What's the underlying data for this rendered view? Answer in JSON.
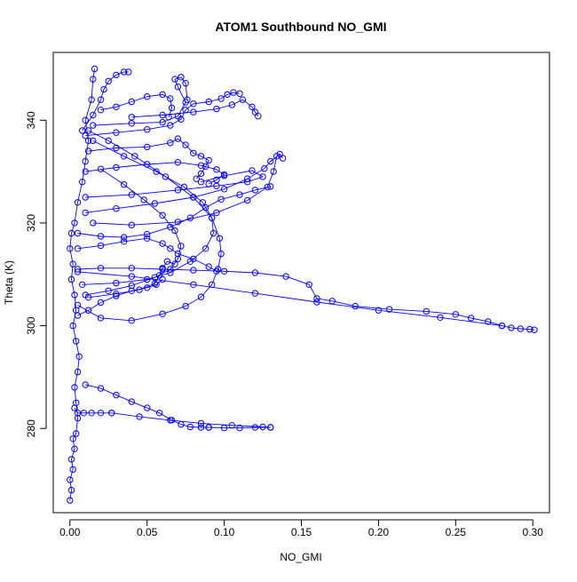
{
  "chart_data": {
    "type": "scatter",
    "title": "ATOM1 Southbound NO_GMI",
    "xlabel": "NO_GMI",
    "ylabel": "Theta (K)",
    "xlim": [
      -0.0108,
      0.3108
    ],
    "ylim": [
      263.6,
      353.2
    ],
    "x_ticks": [
      0.0,
      0.05,
      0.1,
      0.15,
      0.2,
      0.25,
      0.3
    ],
    "x_tick_labels": [
      "0.00",
      "0.05",
      "0.10",
      "0.15",
      "0.20",
      "0.25",
      "0.30"
    ],
    "y_ticks": [
      280,
      300,
      320,
      340
    ],
    "y_tick_labels": [
      "280",
      "300",
      "320",
      "340"
    ],
    "grid": false,
    "marker": "open-circle",
    "connected": true,
    "color": "#0000ff",
    "series": [
      {
        "values": [
          [
            0.0,
            266
          ],
          [
            0.001,
            268
          ],
          [
            0.0,
            270
          ],
          [
            0.002,
            272
          ],
          [
            0.001,
            274
          ],
          [
            0.003,
            276
          ],
          [
            0.002,
            278
          ],
          [
            0.004,
            279
          ],
          [
            0.005,
            282
          ],
          [
            0.004,
            285
          ],
          [
            0.003,
            288
          ],
          [
            0.005,
            291
          ],
          [
            0.006,
            294
          ],
          [
            0.004,
            297
          ],
          [
            0.002,
            300
          ],
          [
            0.004,
            303
          ],
          [
            0.003,
            306
          ],
          [
            0.001,
            309
          ],
          [
            0.002,
            312
          ],
          [
            0.0,
            315
          ],
          [
            0.001,
            318
          ],
          [
            0.003,
            320
          ],
          [
            0.005,
            324
          ],
          [
            0.008,
            328
          ],
          [
            0.01,
            332
          ],
          [
            0.012,
            336
          ],
          [
            0.01,
            340
          ],
          [
            0.014,
            344
          ],
          [
            0.015,
            348
          ],
          [
            0.016,
            350
          ]
        ]
      },
      {
        "values": [
          [
            0.003,
            284
          ],
          [
            0.005,
            283
          ],
          [
            0.009,
            283
          ],
          [
            0.014,
            283
          ],
          [
            0.02,
            283
          ],
          [
            0.027,
            283
          ]
        ]
      },
      {
        "values": [
          [
            0.027,
            283
          ],
          [
            0.045,
            282.3
          ],
          [
            0.065,
            281.6
          ],
          [
            0.085,
            281
          ],
          [
            0.105,
            280.6
          ],
          [
            0.125,
            280.3
          ],
          [
            0.13,
            280.2
          ]
        ]
      },
      {
        "values": [
          [
            0.01,
            288.5
          ],
          [
            0.02,
            287.8
          ],
          [
            0.03,
            286.5
          ],
          [
            0.04,
            285.2
          ],
          [
            0.05,
            284
          ],
          [
            0.058,
            283
          ],
          [
            0.066,
            281.6
          ],
          [
            0.072,
            280.8
          ],
          [
            0.078,
            280.3
          ],
          [
            0.085,
            280.2
          ],
          [
            0.09,
            280.2
          ]
        ]
      },
      {
        "values": [
          [
            0.09,
            280.2
          ],
          [
            0.1,
            280.1
          ],
          [
            0.11,
            280.1
          ],
          [
            0.12,
            280.2
          ],
          [
            0.13,
            280.2
          ]
        ]
      },
      {
        "values": [
          [
            0.005,
            311
          ],
          [
            0.02,
            311.2
          ],
          [
            0.04,
            311.2
          ],
          [
            0.06,
            311
          ],
          [
            0.08,
            310.8
          ],
          [
            0.1,
            310.6
          ],
          [
            0.12,
            310.3
          ],
          [
            0.14,
            309.6
          ],
          [
            0.155,
            308
          ],
          [
            0.16,
            305.3
          ],
          [
            0.17,
            304.8
          ],
          [
            0.185,
            303.8
          ],
          [
            0.207,
            303.2
          ],
          [
            0.231,
            302.8
          ],
          [
            0.25,
            302.2
          ],
          [
            0.26,
            301.5
          ],
          [
            0.271,
            300.8
          ],
          [
            0.28,
            300
          ],
          [
            0.286,
            299.6
          ],
          [
            0.292,
            299.4
          ],
          [
            0.298,
            299.3
          ],
          [
            0.301,
            299.2
          ]
        ]
      },
      {
        "values": [
          [
            0.005,
            310.5
          ],
          [
            0.04,
            309.6
          ],
          [
            0.08,
            308
          ],
          [
            0.12,
            306.3
          ],
          [
            0.16,
            304.6
          ],
          [
            0.2,
            303
          ],
          [
            0.24,
            301.6
          ],
          [
            0.28,
            300
          ]
        ]
      },
      {
        "values": [
          [
            0.005,
            304
          ],
          [
            0.02,
            301.5
          ],
          [
            0.04,
            301
          ],
          [
            0.06,
            302.3
          ],
          [
            0.075,
            303.8
          ],
          [
            0.085,
            305.6
          ],
          [
            0.092,
            308
          ],
          [
            0.096,
            311
          ],
          [
            0.098,
            314
          ],
          [
            0.097,
            317
          ],
          [
            0.092,
            321
          ],
          [
            0.08,
            325
          ],
          [
            0.062,
            329
          ],
          [
            0.042,
            333
          ],
          [
            0.025,
            336
          ],
          [
            0.012,
            338
          ]
        ]
      },
      {
        "values": [
          [
            0.008,
            308
          ],
          [
            0.03,
            308.3
          ],
          [
            0.05,
            309
          ],
          [
            0.065,
            310.3
          ],
          [
            0.078,
            312.5
          ],
          [
            0.088,
            315
          ],
          [
            0.093,
            318
          ],
          [
            0.092,
            321
          ],
          [
            0.086,
            324
          ],
          [
            0.074,
            327
          ],
          [
            0.056,
            330
          ],
          [
            0.035,
            333
          ],
          [
            0.015,
            336
          ]
        ]
      },
      {
        "values": [
          [
            0.01,
            306
          ],
          [
            0.025,
            306.8
          ],
          [
            0.04,
            307.8
          ],
          [
            0.055,
            309.4
          ],
          [
            0.065,
            311
          ],
          [
            0.07,
            313
          ],
          [
            0.072,
            315.5
          ],
          [
            0.068,
            318.5
          ],
          [
            0.06,
            321.5
          ],
          [
            0.048,
            324.5
          ],
          [
            0.035,
            327.5
          ],
          [
            0.02,
            330.5
          ]
        ]
      },
      {
        "values": [
          [
            0.012,
            305.5
          ],
          [
            0.03,
            306.2
          ],
          [
            0.045,
            307
          ],
          [
            0.055,
            308.2
          ],
          [
            0.058,
            309.8
          ],
          [
            0.06,
            311.2
          ],
          [
            0.063,
            312.5
          ],
          [
            0.068,
            312
          ]
        ]
      },
      {
        "values": [
          [
            0.005,
            318
          ],
          [
            0.02,
            317.4
          ],
          [
            0.035,
            317.2
          ],
          [
            0.05,
            317.8
          ],
          [
            0.065,
            319.2
          ],
          [
            0.078,
            321
          ],
          [
            0.088,
            323
          ],
          [
            0.098,
            324.6
          ],
          [
            0.11,
            325.5
          ],
          [
            0.12,
            326.4
          ],
          [
            0.13,
            327.1
          ]
        ]
      },
      {
        "values": [
          [
            0.015,
            320
          ],
          [
            0.04,
            319.6
          ],
          [
            0.07,
            320.2
          ],
          [
            0.095,
            322
          ],
          [
            0.115,
            324.4
          ],
          [
            0.128,
            327
          ],
          [
            0.132,
            330
          ],
          [
            0.134,
            333
          ]
        ]
      },
      {
        "values": [
          [
            0.01,
            322
          ],
          [
            0.03,
            322.8
          ],
          [
            0.055,
            323.8
          ],
          [
            0.08,
            325
          ],
          [
            0.1,
            326.6
          ],
          [
            0.115,
            328.6
          ],
          [
            0.126,
            330.6
          ],
          [
            0.13,
            332
          ],
          [
            0.136,
            333.4
          ],
          [
            0.138,
            332.6
          ]
        ]
      },
      {
        "values": [
          [
            0.01,
            325
          ],
          [
            0.04,
            325.5
          ],
          [
            0.07,
            326.4
          ],
          [
            0.095,
            327.2
          ],
          [
            0.115,
            328
          ],
          [
            0.125,
            329
          ],
          [
            0.118,
            330.2
          ],
          [
            0.1,
            329.2
          ],
          [
            0.085,
            328
          ]
        ]
      },
      {
        "values": [
          [
            0.01,
            330
          ],
          [
            0.03,
            330.8
          ],
          [
            0.05,
            331.4
          ],
          [
            0.07,
            331.8
          ],
          [
            0.085,
            331.2
          ],
          [
            0.095,
            330.4
          ],
          [
            0.1,
            329.4
          ],
          [
            0.095,
            328.4
          ],
          [
            0.09,
            327.6
          ]
        ]
      },
      {
        "values": [
          [
            0.012,
            334
          ],
          [
            0.03,
            334.6
          ],
          [
            0.05,
            334.8
          ],
          [
            0.065,
            335.6
          ],
          [
            0.07,
            336.4
          ],
          [
            0.075,
            335.2
          ],
          [
            0.08,
            333.6
          ],
          [
            0.085,
            333
          ],
          [
            0.09,
            332.2
          ],
          [
            0.088,
            331
          ],
          [
            0.085,
            329.6
          ],
          [
            0.082,
            328.6
          ]
        ]
      },
      {
        "values": [
          [
            0.01,
            337
          ],
          [
            0.03,
            337.6
          ],
          [
            0.05,
            338.2
          ],
          [
            0.065,
            339
          ],
          [
            0.072,
            340.2
          ],
          [
            0.075,
            342
          ],
          [
            0.08,
            343.2
          ],
          [
            0.09,
            343.6
          ],
          [
            0.098,
            344.2
          ],
          [
            0.102,
            345
          ],
          [
            0.106,
            345.4
          ],
          [
            0.11,
            345.2
          ]
        ]
      },
      {
        "values": [
          [
            0.04,
            340.6
          ],
          [
            0.06,
            341
          ],
          [
            0.08,
            341.6
          ],
          [
            0.095,
            342.2
          ],
          [
            0.105,
            343
          ],
          [
            0.112,
            344
          ],
          [
            0.118,
            342.6
          ],
          [
            0.12,
            341.6
          ],
          [
            0.122,
            340.8
          ]
        ]
      },
      {
        "values": [
          [
            0.015,
            339
          ],
          [
            0.04,
            339.4
          ],
          [
            0.06,
            339.6
          ],
          [
            0.07,
            340.8
          ],
          [
            0.075,
            343.5
          ],
          [
            0.07,
            346.5
          ],
          [
            0.068,
            348
          ],
          [
            0.072,
            348.4
          ],
          [
            0.075,
            347.2
          ],
          [
            0.076,
            344
          ]
        ]
      },
      {
        "values": [
          [
            0.02,
            342
          ],
          [
            0.03,
            342.6
          ],
          [
            0.04,
            343.6
          ],
          [
            0.05,
            344.6
          ],
          [
            0.06,
            345
          ],
          [
            0.065,
            344.2
          ],
          [
            0.066,
            342.4
          ],
          [
            0.064,
            340.6
          ]
        ]
      },
      {
        "values": [
          [
            0.008,
            338
          ],
          [
            0.015,
            341
          ],
          [
            0.02,
            344
          ],
          [
            0.022,
            346
          ],
          [
            0.025,
            347.6
          ],
          [
            0.03,
            348.8
          ],
          [
            0.035,
            349.4
          ],
          [
            0.038,
            349.4
          ]
        ]
      },
      {
        "values": [
          [
            0.005,
            315
          ],
          [
            0.02,
            315.6
          ],
          [
            0.035,
            316.4
          ],
          [
            0.05,
            317
          ],
          [
            0.06,
            316
          ],
          [
            0.065,
            315
          ],
          [
            0.07,
            314
          ],
          [
            0.08,
            313
          ],
          [
            0.09,
            311.5
          ],
          [
            0.095,
            310.6
          ]
        ]
      },
      {
        "values": [
          [
            0.005,
            302
          ],
          [
            0.012,
            303
          ],
          [
            0.02,
            304.5
          ],
          [
            0.03,
            305.8
          ],
          [
            0.04,
            306.8
          ],
          [
            0.05,
            307.4
          ],
          [
            0.056,
            308
          ],
          [
            0.06,
            309
          ]
        ]
      }
    ]
  }
}
